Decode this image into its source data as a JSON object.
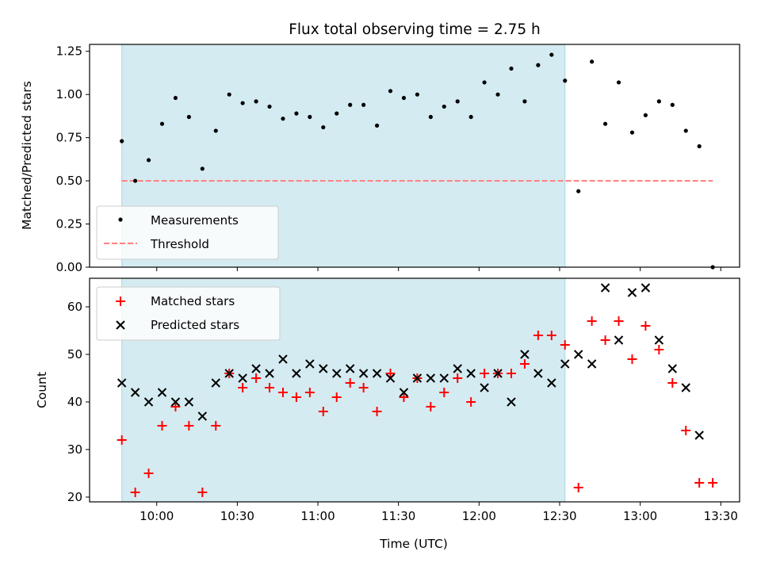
{
  "chart_data": [
    {
      "type": "scatter",
      "title": "Flux total observing time = 2.75 h",
      "xlabel": "",
      "ylabel": "Matched/Predicted stars",
      "ylim": [
        0,
        1.29
      ],
      "yticks": [
        "0.00",
        "0.25",
        "0.50",
        "0.75",
        "1.00",
        "1.25"
      ],
      "xticks_shown": false,
      "shaded_interval": [
        "09:47",
        "12:32"
      ],
      "shaded_color": "#d4ebf1",
      "legend_position": "lower-left",
      "series": [
        {
          "name": "Measurements",
          "marker": "dot",
          "color": "#000000",
          "points": [
            [
              "09:47",
              0.73
            ],
            [
              "09:52",
              0.5
            ],
            [
              "09:57",
              0.62
            ],
            [
              "10:02",
              0.83
            ],
            [
              "10:07",
              0.98
            ],
            [
              "10:12",
              0.87
            ],
            [
              "10:17",
              0.57
            ],
            [
              "10:22",
              0.79
            ],
            [
              "10:27",
              1.0
            ],
            [
              "10:32",
              0.95
            ],
            [
              "10:37",
              0.96
            ],
            [
              "10:42",
              0.93
            ],
            [
              "10:47",
              0.86
            ],
            [
              "10:52",
              0.89
            ],
            [
              "10:57",
              0.87
            ],
            [
              "11:02",
              0.81
            ],
            [
              "11:07",
              0.89
            ],
            [
              "11:12",
              0.94
            ],
            [
              "11:17",
              0.94
            ],
            [
              "11:22",
              0.82
            ],
            [
              "11:27",
              1.02
            ],
            [
              "11:32",
              0.98
            ],
            [
              "11:37",
              1.0
            ],
            [
              "11:42",
              0.87
            ],
            [
              "11:47",
              0.93
            ],
            [
              "11:52",
              0.96
            ],
            [
              "11:57",
              0.87
            ],
            [
              "12:02",
              1.07
            ],
            [
              "12:07",
              1.0
            ],
            [
              "12:12",
              1.15
            ],
            [
              "12:17",
              0.96
            ],
            [
              "12:22",
              1.17
            ],
            [
              "12:27",
              1.23
            ],
            [
              "12:32",
              1.08
            ],
            [
              "12:37",
              0.44
            ],
            [
              "12:42",
              1.19
            ],
            [
              "12:47",
              0.83
            ],
            [
              "12:52",
              1.07
            ],
            [
              "12:57",
              0.78
            ],
            [
              "13:02",
              0.88
            ],
            [
              "13:07",
              0.96
            ],
            [
              "13:12",
              0.94
            ],
            [
              "13:17",
              0.79
            ],
            [
              "13:22",
              0.7
            ],
            [
              "13:27",
              0.0
            ]
          ]
        },
        {
          "name": "Threshold",
          "marker": "dashed-line",
          "color": "#ff7f7f",
          "x_range": [
            "09:47",
            "13:27"
          ],
          "value": 0.5
        }
      ]
    },
    {
      "type": "scatter",
      "title": "",
      "xlabel": "Time (UTC)",
      "ylabel": "Count",
      "ylim": [
        19,
        66
      ],
      "yticks": [
        "20",
        "30",
        "40",
        "50",
        "60"
      ],
      "xticks": [
        "10:00",
        "10:30",
        "11:00",
        "11:30",
        "12:00",
        "12:30",
        "13:00",
        "13:30"
      ],
      "shaded_interval": [
        "09:47",
        "12:32"
      ],
      "shaded_color": "#d4ebf1",
      "legend_position": "upper-left",
      "series": [
        {
          "name": "Matched stars",
          "marker": "plus",
          "color": "#ff0000",
          "points": [
            [
              "09:47",
              32
            ],
            [
              "09:52",
              21
            ],
            [
              "09:57",
              25
            ],
            [
              "10:02",
              35
            ],
            [
              "10:07",
              39
            ],
            [
              "10:12",
              35
            ],
            [
              "10:17",
              21
            ],
            [
              "10:22",
              35
            ],
            [
              "10:27",
              46
            ],
            [
              "10:32",
              43
            ],
            [
              "10:37",
              45
            ],
            [
              "10:42",
              43
            ],
            [
              "10:47",
              42
            ],
            [
              "10:52",
              41
            ],
            [
              "10:57",
              42
            ],
            [
              "11:02",
              38
            ],
            [
              "11:07",
              41
            ],
            [
              "11:12",
              44
            ],
            [
              "11:17",
              43
            ],
            [
              "11:22",
              38
            ],
            [
              "11:27",
              46
            ],
            [
              "11:32",
              41
            ],
            [
              "11:37",
              45
            ],
            [
              "11:42",
              39
            ],
            [
              "11:47",
              42
            ],
            [
              "11:52",
              45
            ],
            [
              "11:57",
              40
            ],
            [
              "12:02",
              46
            ],
            [
              "12:07",
              46
            ],
            [
              "12:12",
              46
            ],
            [
              "12:17",
              48
            ],
            [
              "12:22",
              54
            ],
            [
              "12:27",
              54
            ],
            [
              "12:32",
              52
            ],
            [
              "12:37",
              22
            ],
            [
              "12:42",
              57
            ],
            [
              "12:47",
              53
            ],
            [
              "12:52",
              57
            ],
            [
              "12:57",
              49
            ],
            [
              "13:02",
              56
            ],
            [
              "13:07",
              51
            ],
            [
              "13:12",
              44
            ],
            [
              "13:17",
              34
            ],
            [
              "13:22",
              23
            ],
            [
              "13:27",
              23
            ]
          ]
        },
        {
          "name": "Predicted stars",
          "marker": "x",
          "color": "#000000",
          "points": [
            [
              "09:47",
              44
            ],
            [
              "09:52",
              42
            ],
            [
              "09:57",
              40
            ],
            [
              "10:02",
              42
            ],
            [
              "10:07",
              40
            ],
            [
              "10:12",
              40
            ],
            [
              "10:17",
              37
            ],
            [
              "10:22",
              44
            ],
            [
              "10:27",
              46
            ],
            [
              "10:32",
              45
            ],
            [
              "10:37",
              47
            ],
            [
              "10:42",
              46
            ],
            [
              "10:47",
              49
            ],
            [
              "10:52",
              46
            ],
            [
              "10:57",
              48
            ],
            [
              "11:02",
              47
            ],
            [
              "11:07",
              46
            ],
            [
              "11:12",
              47
            ],
            [
              "11:17",
              46
            ],
            [
              "11:22",
              46
            ],
            [
              "11:27",
              45
            ],
            [
              "11:32",
              42
            ],
            [
              "11:37",
              45
            ],
            [
              "11:42",
              45
            ],
            [
              "11:47",
              45
            ],
            [
              "11:52",
              47
            ],
            [
              "11:57",
              46
            ],
            [
              "12:02",
              43
            ],
            [
              "12:07",
              46
            ],
            [
              "12:12",
              40
            ],
            [
              "12:17",
              50
            ],
            [
              "12:22",
              46
            ],
            [
              "12:27",
              44
            ],
            [
              "12:32",
              48
            ],
            [
              "12:37",
              50
            ],
            [
              "12:42",
              48
            ],
            [
              "12:47",
              64
            ],
            [
              "12:52",
              53
            ],
            [
              "12:57",
              63
            ],
            [
              "13:02",
              64
            ],
            [
              "13:07",
              53
            ],
            [
              "13:12",
              47
            ],
            [
              "13:17",
              43
            ],
            [
              "13:22",
              33
            ]
          ]
        }
      ]
    }
  ]
}
